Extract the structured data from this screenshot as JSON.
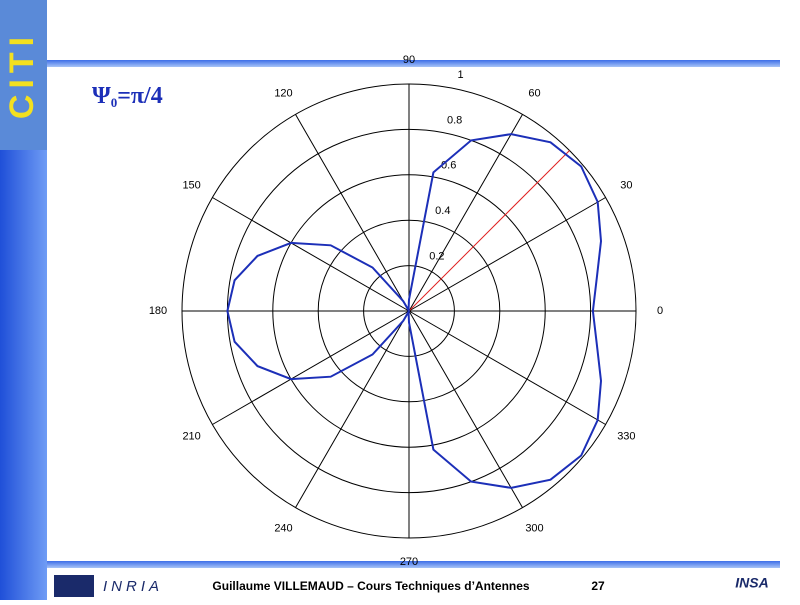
{
  "slide": {
    "logo_top": "CITI",
    "footer": "Guillaume VILLEMAUD – Cours Techniques d’Antennes",
    "page": "27",
    "logo_left": "INRIA",
    "logo_right": "INSA"
  },
  "chart_data": {
    "type": "polar",
    "title": {
      "symbol": "Ψ",
      "sub": "0",
      "rest": "=π/4"
    },
    "thetaticks": [
      0,
      30,
      60,
      90,
      120,
      150,
      180,
      210,
      240,
      270,
      300,
      330
    ],
    "rlim": [
      0,
      1
    ],
    "rticks": [
      0.2,
      0.4,
      0.6,
      0.8,
      1
    ],
    "grid": true,
    "reference_angle": 45,
    "reference_color": "#e02020",
    "series": [
      {
        "color": "#1c2fb8",
        "theta": [
          0,
          10,
          20,
          30,
          40,
          50,
          60,
          70,
          80,
          90,
          100,
          110,
          120,
          130,
          140,
          150,
          160,
          170,
          180,
          190,
          200,
          210,
          220,
          230,
          240,
          250,
          260,
          270,
          280,
          290,
          300,
          310,
          320,
          330,
          340,
          350,
          360
        ],
        "r": [
          0.81,
          0.84,
          0.9,
          0.96,
          0.99,
          0.97,
          0.9,
          0.8,
          0.62,
          0.05,
          0.01,
          0.0,
          0.05,
          0.25,
          0.45,
          0.6,
          0.71,
          0.78,
          0.8,
          0.78,
          0.71,
          0.6,
          0.45,
          0.25,
          0.05,
          0.0,
          0.01,
          0.05,
          0.62,
          0.8,
          0.9,
          0.97,
          0.99,
          0.96,
          0.9,
          0.84,
          0.81
        ]
      }
    ]
  }
}
